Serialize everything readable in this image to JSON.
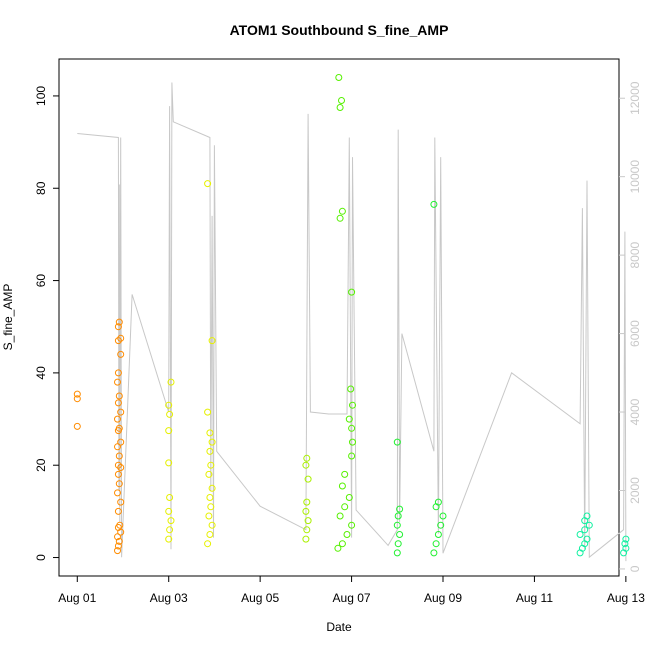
{
  "chart_data": {
    "type": "scatter",
    "title": "ATOM1 Southbound S_fine_AMP",
    "xlabel": "Date",
    "ylabel": "S_fine_AMP",
    "x_unit": "date (August, day with fractional time)",
    "xlim": [
      0.6,
      12.85
    ],
    "ylim": [
      -4,
      108
    ],
    "y2lim": [
      -180,
      13000
    ],
    "x_ticks": [
      {
        "value": 1,
        "label": "Aug 01"
      },
      {
        "value": 3,
        "label": "Aug 03"
      },
      {
        "value": 5,
        "label": "Aug 05"
      },
      {
        "value": 7,
        "label": "Aug 07"
      },
      {
        "value": 9,
        "label": "Aug 09"
      },
      {
        "value": 11,
        "label": "Aug 11"
      },
      {
        "value": 13,
        "label": "Aug 13"
      }
    ],
    "y_ticks": [
      0,
      20,
      40,
      60,
      80,
      100
    ],
    "y2_ticks": [
      0,
      2000,
      4000,
      6000,
      8000,
      10000,
      12000
    ],
    "grid": false,
    "legend": "none",
    "line_color": "#c8c8c8",
    "secondary_line": {
      "description": "grey line on secondary right axis",
      "points": [
        [
          1.0,
          11100
        ],
        [
          1.9,
          11000
        ],
        [
          1.91,
          2000
        ],
        [
          1.92,
          9800
        ],
        [
          1.93,
          1200
        ],
        [
          1.95,
          11000
        ],
        [
          1.97,
          300
        ],
        [
          2.2,
          7000
        ],
        [
          3.0,
          4000
        ],
        [
          3.02,
          11800
        ],
        [
          3.05,
          500
        ],
        [
          3.07,
          12400
        ],
        [
          3.1,
          11400
        ],
        [
          3.9,
          11000
        ],
        [
          3.92,
          2000
        ],
        [
          3.95,
          9000
        ],
        [
          3.98,
          800
        ],
        [
          4.0,
          10800
        ],
        [
          4.05,
          3000
        ],
        [
          5.0,
          1600
        ],
        [
          6.0,
          1000
        ],
        [
          6.05,
          11600
        ],
        [
          6.1,
          4000
        ],
        [
          6.5,
          3950
        ],
        [
          6.9,
          3950
        ],
        [
          6.95,
          11000
        ],
        [
          7.0,
          800
        ],
        [
          7.02,
          10500
        ],
        [
          7.1,
          1500
        ],
        [
          7.8,
          600
        ],
        [
          8.0,
          1000
        ],
        [
          8.02,
          11200
        ],
        [
          8.05,
          1200
        ],
        [
          8.1,
          6000
        ],
        [
          8.8,
          3000
        ],
        [
          8.82,
          11000
        ],
        [
          8.9,
          900
        ],
        [
          8.95,
          10500
        ],
        [
          9.0,
          400
        ],
        [
          10.5,
          5000
        ],
        [
          12.0,
          3700
        ],
        [
          12.05,
          9200
        ],
        [
          12.1,
          500
        ],
        [
          12.15,
          9900
        ],
        [
          12.2,
          300
        ],
        [
          12.95,
          1000
        ],
        [
          12.98,
          8600
        ],
        [
          13.0,
          200
        ]
      ]
    },
    "series": [
      {
        "color": "#ff8c00",
        "points": [
          [
            1,
            28.4
          ],
          [
            1,
            34.4
          ],
          [
            1,
            35.4
          ],
          [
            1.88,
            1.5
          ],
          [
            1.9,
            2.5
          ],
          [
            1.92,
            3.5
          ],
          [
            1.88,
            4.5
          ],
          [
            1.95,
            5.5
          ],
          [
            1.9,
            6.5
          ],
          [
            1.93,
            7
          ],
          [
            1.9,
            10
          ],
          [
            1.95,
            12
          ],
          [
            1.88,
            14
          ],
          [
            1.92,
            16
          ],
          [
            1.9,
            18
          ],
          [
            1.95,
            19.5
          ],
          [
            1.9,
            20
          ],
          [
            1.92,
            22
          ],
          [
            1.88,
            24
          ],
          [
            1.95,
            25
          ],
          [
            1.9,
            27.5
          ],
          [
            1.92,
            28
          ],
          [
            1.88,
            30
          ],
          [
            1.95,
            31.5
          ],
          [
            1.9,
            33.5
          ],
          [
            1.92,
            35
          ],
          [
            1.88,
            38
          ],
          [
            1.9,
            40
          ],
          [
            1.95,
            44
          ],
          [
            1.9,
            47
          ],
          [
            1.95,
            47.5
          ],
          [
            1.9,
            50
          ],
          [
            1.92,
            51
          ]
        ]
      },
      {
        "color": "#e6f000",
        "points": [
          [
            3,
            4
          ],
          [
            3.02,
            6
          ],
          [
            3.05,
            8
          ],
          [
            3,
            10
          ],
          [
            3.02,
            13
          ],
          [
            3,
            20.5
          ],
          [
            3,
            27.5
          ],
          [
            3.02,
            31
          ],
          [
            3,
            33
          ],
          [
            3.05,
            38
          ],
          [
            3.85,
            3
          ],
          [
            3.9,
            5
          ],
          [
            3.95,
            7
          ],
          [
            3.88,
            9
          ],
          [
            3.92,
            11
          ],
          [
            3.9,
            13
          ],
          [
            3.95,
            15
          ],
          [
            3.88,
            18
          ],
          [
            3.92,
            20
          ],
          [
            3.9,
            23
          ],
          [
            3.95,
            25
          ],
          [
            3.9,
            27
          ],
          [
            3.85,
            31.5
          ],
          [
            3.95,
            47
          ],
          [
            3.85,
            81
          ]
        ]
      },
      {
        "color": "#aaf000",
        "points": [
          [
            6,
            4
          ],
          [
            6.02,
            6
          ],
          [
            6.05,
            8
          ],
          [
            6,
            10
          ],
          [
            6.02,
            12
          ],
          [
            6.05,
            17
          ],
          [
            6,
            20
          ],
          [
            6.02,
            21.5
          ]
        ]
      },
      {
        "color": "#55f000",
        "points": [
          [
            6.7,
            2
          ],
          [
            6.8,
            3
          ],
          [
            6.9,
            5
          ],
          [
            7,
            7
          ],
          [
            6.75,
            9
          ],
          [
            6.85,
            11
          ],
          [
            6.95,
            13
          ],
          [
            6.8,
            15.5
          ],
          [
            6.85,
            18
          ],
          [
            7,
            22
          ],
          [
            7.02,
            25
          ],
          [
            7,
            28
          ],
          [
            6.95,
            30
          ],
          [
            7.02,
            33
          ],
          [
            6.98,
            36.5
          ],
          [
            7,
            57.5
          ],
          [
            6.75,
            73.5
          ],
          [
            6.8,
            75
          ],
          [
            6.75,
            97.5
          ],
          [
            6.78,
            99
          ],
          [
            6.72,
            104
          ]
        ]
      },
      {
        "color": "#20f030",
        "points": [
          [
            8,
            1
          ],
          [
            8.02,
            3
          ],
          [
            8.05,
            5
          ],
          [
            8,
            7
          ],
          [
            8.02,
            9
          ],
          [
            8.05,
            10.5
          ],
          [
            8,
            25
          ],
          [
            8.8,
            1
          ],
          [
            8.85,
            3
          ],
          [
            8.9,
            5
          ],
          [
            8.95,
            7
          ],
          [
            9,
            9
          ],
          [
            8.85,
            11
          ],
          [
            8.9,
            12
          ],
          [
            8.8,
            76.5
          ]
        ]
      },
      {
        "color": "#10f0a0",
        "points": [
          [
            12,
            1
          ],
          [
            12.05,
            2
          ],
          [
            12.1,
            3
          ],
          [
            12.15,
            4
          ],
          [
            12,
            5
          ],
          [
            12.1,
            6
          ],
          [
            12.2,
            7
          ],
          [
            12.1,
            8
          ],
          [
            12.15,
            9
          ],
          [
            12.95,
            1
          ],
          [
            13,
            2
          ],
          [
            12.98,
            3
          ],
          [
            13,
            4
          ]
        ]
      }
    ]
  }
}
